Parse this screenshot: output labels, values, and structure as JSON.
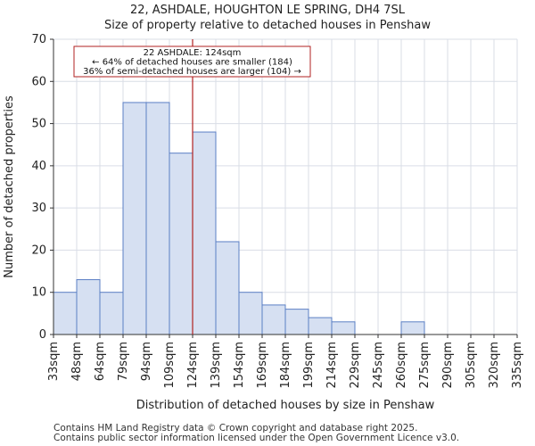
{
  "header": {
    "title_line1": "22, ASHDALE, HOUGHTON LE SPRING, DH4 7SL",
    "title_line2": "Size of property relative to detached houses in Penshaw"
  },
  "footer": {
    "line1": "Contains HM Land Registry data © Crown copyright and database right 2025.",
    "line2": "Contains public sector information licensed under the Open Government Licence v3.0."
  },
  "chart_data": {
    "type": "bar",
    "title": "Size of property relative to detached houses in Penshaw",
    "xlabel": "Distribution of detached houses by size in Penshaw",
    "ylabel": "Number of detached properties",
    "ylim": [
      0,
      70
    ],
    "yticks": [
      0,
      10,
      20,
      30,
      40,
      50,
      60,
      70
    ],
    "grid": true,
    "bin_edges": [
      "33sqm",
      "48sqm",
      "64sqm",
      "79sqm",
      "94sqm",
      "109sqm",
      "124sqm",
      "139sqm",
      "154sqm",
      "169sqm",
      "184sqm",
      "199sqm",
      "214sqm",
      "229sqm",
      "245sqm",
      "260sqm",
      "275sqm",
      "290sqm",
      "305sqm",
      "320sqm",
      "335sqm"
    ],
    "values": [
      10,
      13,
      10,
      55,
      55,
      43,
      48,
      22,
      10,
      7,
      6,
      4,
      3,
      0,
      0,
      3,
      0,
      0,
      0,
      0
    ],
    "bar_color": "#d6e0f2",
    "bar_edge_color": "#5b7fc4",
    "marker": {
      "value_label": "124sqm",
      "bin_index": 6,
      "color": "#b22222",
      "annotation": [
        "22 ASHDALE: 124sqm",
        "← 64% of detached houses are smaller (184)",
        "36% of semi-detached houses are larger (104) →"
      ]
    }
  }
}
